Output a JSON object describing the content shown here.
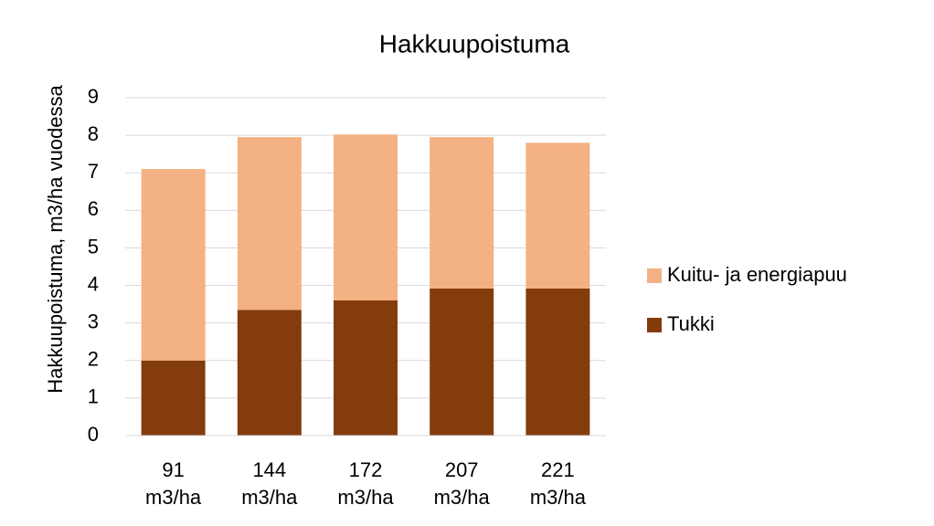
{
  "chart_data": {
    "type": "stacked_bar",
    "title": "Hakkuupoistuma",
    "y_label": "Hakkuupoistuma, m3/ha vuodessa",
    "categories": [
      "91 m3/ha",
      "144 m3/ha",
      "172 m3/ha",
      "207 m3/ha",
      "221 m3/ha"
    ],
    "series": [
      {
        "name": "Tukki",
        "color": "#843c0c",
        "values": [
          2.0,
          3.35,
          3.6,
          3.92,
          3.92
        ]
      },
      {
        "name": "Kuitu- ja energiapuu",
        "color": "#f4b183",
        "values": [
          5.1,
          4.6,
          4.42,
          4.03,
          3.88
        ]
      }
    ],
    "ylim": [
      0,
      9
    ],
    "yticks": [
      0,
      1,
      2,
      3,
      4,
      5,
      6,
      7,
      8,
      9
    ],
    "grid": true,
    "legend": "right"
  }
}
